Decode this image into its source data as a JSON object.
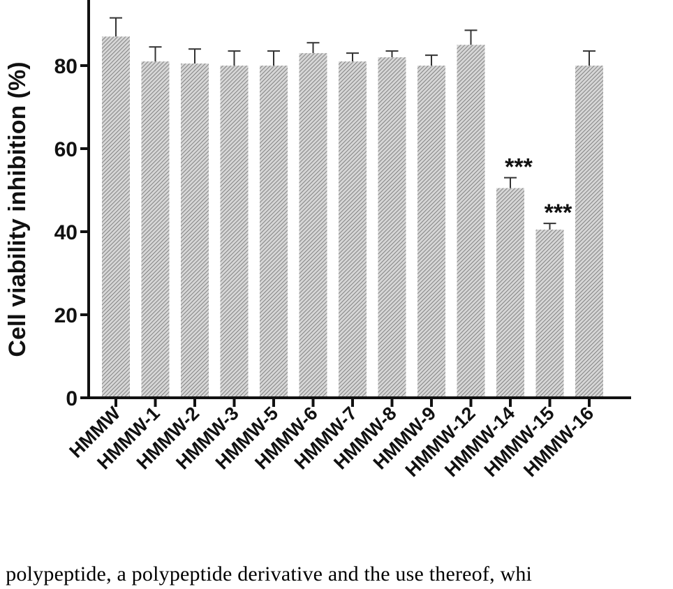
{
  "chart_data": {
    "type": "bar",
    "title": "",
    "ylabel": "Cell viability inhibition (%)",
    "xlabel": "",
    "ylim": [
      0,
      100
    ],
    "yticks": [
      0,
      20,
      40,
      60,
      80
    ],
    "ytick_labels": [
      "0",
      "20",
      "40",
      "60",
      "80"
    ],
    "grid": false,
    "legend": "none",
    "categories": [
      "HMMW",
      "HMMW-1",
      "HMMW-2",
      "HMMW-3",
      "HMMW-5",
      "HMMW-6",
      "HMMW-7",
      "HMMW-8",
      "HMMW-9",
      "HMMW-12",
      "HMMW-14",
      "HMMW-15",
      "HMMW-16"
    ],
    "values": [
      87,
      81,
      80.5,
      80,
      80,
      83,
      81,
      82,
      80,
      85,
      50.5,
      40.5,
      80
    ],
    "errors": [
      4.5,
      3.5,
      3.5,
      3.5,
      3.5,
      2.5,
      2,
      1.5,
      2.5,
      3.5,
      2.5,
      1.5,
      3.5
    ],
    "significance": [
      "",
      "",
      "",
      "",
      "",
      "",
      "",
      "",
      "",
      "",
      "***",
      "***",
      ""
    ],
    "bar_color": "#b8b8b8",
    "bar_pattern": "diagonal hatch"
  },
  "caption": "l polypeptide, a polypeptide derivative and the use thereof, whi"
}
